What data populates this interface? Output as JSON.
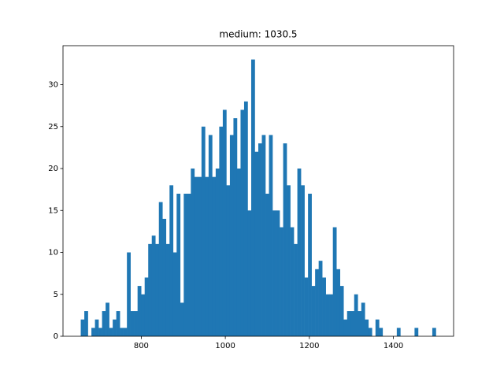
{
  "chart_data": {
    "type": "histogram",
    "title": "medium: 1030.5",
    "color": "#1f77b4",
    "bins": [
      656,
      664.45,
      672.9,
      681.35,
      689.8,
      698.25,
      706.7,
      715.15,
      723.6,
      732.05,
      740.5,
      748.95,
      757.4,
      765.85,
      774.3,
      782.75,
      791.2,
      799.65,
      808.1,
      816.55,
      825,
      833.45,
      841.9,
      850.35,
      858.8,
      867.25,
      875.7,
      884.15,
      892.6,
      901.05,
      909.5,
      917.95,
      926.4,
      934.85,
      943.3,
      951.75,
      960.2,
      968.65,
      977.1,
      985.55,
      994,
      1002.45,
      1010.9,
      1019.35,
      1027.8,
      1036.25,
      1044.7,
      1053.15,
      1061.6,
      1070.05,
      1078.5,
      1086.95,
      1095.4,
      1103.85,
      1112.3,
      1120.75,
      1129.2,
      1137.65,
      1146.1,
      1154.55,
      1163,
      1171.45,
      1179.9,
      1188.35,
      1196.8,
      1205.25,
      1213.7,
      1222.15,
      1230.6,
      1239.05,
      1247.5,
      1255.95,
      1264.4,
      1272.85,
      1281.3,
      1289.75,
      1298.2,
      1306.65,
      1315.1,
      1323.55,
      1332,
      1340.45,
      1348.9,
      1357.35,
      1365.8,
      1374.25,
      1382.7,
      1391.15,
      1399.6,
      1408.05,
      1416.5,
      1424.95,
      1433.4,
      1441.85,
      1450.3,
      1458.75,
      1467.2,
      1475.65,
      1484.1,
      1492.55,
      1501
    ],
    "values": [
      2,
      3,
      0,
      1,
      2,
      1,
      3,
      4,
      1,
      2,
      3,
      1,
      1,
      10,
      3,
      3,
      6,
      5,
      7,
      11,
      12,
      11,
      16,
      14,
      11,
      18,
      10,
      17,
      4,
      17,
      17,
      20,
      19,
      19,
      25,
      19,
      24,
      19,
      20,
      25,
      27,
      18,
      24,
      26,
      20,
      27,
      28,
      15,
      33,
      22,
      23,
      24,
      17,
      24,
      15,
      15,
      13,
      23,
      18,
      13,
      11,
      20,
      18,
      7,
      17,
      6,
      8,
      9,
      7,
      5,
      5,
      13,
      8,
      6,
      2,
      3,
      3,
      5,
      3,
      4,
      2,
      1,
      0,
      2,
      1,
      0,
      0,
      0,
      0,
      1,
      0,
      0,
      0,
      0,
      1,
      0,
      0,
      0,
      0,
      1
    ],
    "xlim": [
      613.75,
      1543.25
    ],
    "xticks": [
      800,
      1000,
      1200,
      1400
    ],
    "ylim": [
      0,
      34.65
    ],
    "yticks": [
      0,
      5,
      10,
      15,
      20,
      25,
      30
    ]
  }
}
